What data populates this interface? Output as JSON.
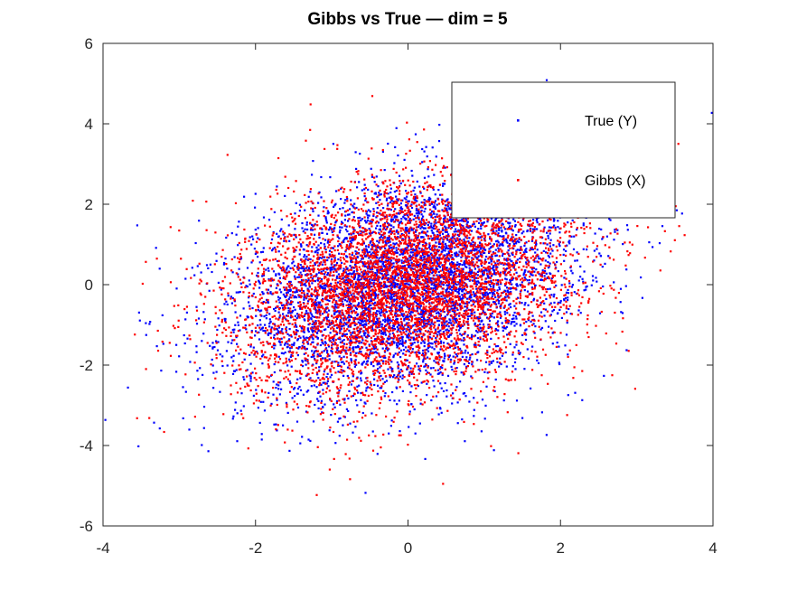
{
  "chart_data": {
    "type": "scatter",
    "title": "Gibbs vs True — dim = 5",
    "xlabel": "",
    "ylabel": "",
    "xlim": [
      -4,
      4
    ],
    "ylim": [
      -6,
      6
    ],
    "xticks": [
      -4,
      -2,
      0,
      2,
      4
    ],
    "yticks": [
      -6,
      -4,
      -2,
      0,
      2,
      4,
      6
    ],
    "xtick_labels": [
      "-4",
      "-2",
      "0",
      "2",
      "4"
    ],
    "ytick_labels": [
      "-6",
      "-4",
      "-2",
      "0",
      "2",
      "4",
      "6"
    ],
    "grid": false,
    "legend_position": "top-right",
    "approx_points_per_series": 5000,
    "distribution": {
      "mean": [
        0,
        0
      ],
      "std": [
        1.1,
        1.35
      ],
      "correlation": 0.3
    },
    "series": [
      {
        "name": "True (Y)",
        "color": "#0000ff",
        "marker": "dot"
      },
      {
        "name": "Gibbs (X)",
        "color": "#ff0000",
        "marker": "dot"
      }
    ]
  }
}
